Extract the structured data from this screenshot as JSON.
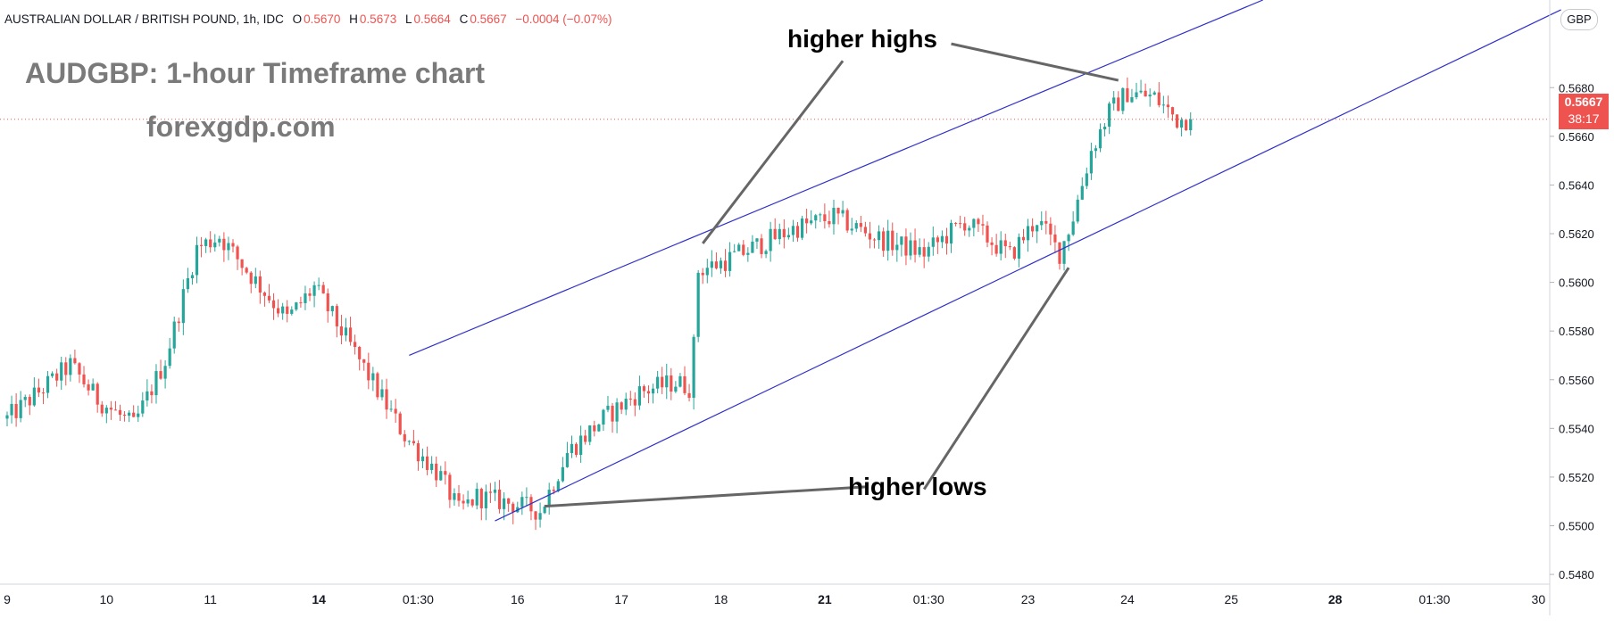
{
  "header": {
    "symbol": "AUSTRALIAN DOLLAR / BRITISH POUND, 1h, IDC",
    "open_label": "O",
    "open": "0.5670",
    "high_label": "H",
    "high": "0.5673",
    "low_label": "L",
    "low": "0.5664",
    "close_label": "C",
    "close": "0.5667",
    "change": "−0.0004 (−0.07%)"
  },
  "overlay": {
    "title": "AUDGBP: 1-hour Timeframe chart",
    "site": "forexgdp.com"
  },
  "annotations": {
    "higher_highs": "higher highs",
    "higher_lows": "higher lows"
  },
  "price_scale": {
    "currency": "GBP",
    "last_price": "0.5667",
    "countdown": "38:17"
  },
  "colors": {
    "up_candle": "#26a69a",
    "down_candle": "#ef5350",
    "trendline": "#3030c8",
    "annotation_line": "#666666",
    "price_line": "#ef5350",
    "axis_text": "#131722"
  },
  "chart_data": {
    "type": "candlestick",
    "instrument": "AUDGBP",
    "timeframe": "1h",
    "ylim": [
      0.5476,
      0.5716
    ],
    "y_ticks": [
      "0.5480",
      "0.5500",
      "0.5520",
      "0.5540",
      "0.5560",
      "0.5580",
      "0.5600",
      "0.5620",
      "0.5640",
      "0.5660",
      "0.5680"
    ],
    "x_ticks": [
      {
        "label": "9",
        "bar": 0,
        "bold": false
      },
      {
        "label": "10",
        "bar": 22,
        "bold": false
      },
      {
        "label": "11",
        "bar": 45,
        "bold": false
      },
      {
        "label": "14",
        "bar": 69,
        "bold": true
      },
      {
        "label": "01:30",
        "bar": 91,
        "bold": false
      },
      {
        "label": "16",
        "bar": 113,
        "bold": false
      },
      {
        "label": "17",
        "bar": 136,
        "bold": false
      },
      {
        "label": "18",
        "bar": 158,
        "bold": false
      },
      {
        "label": "21",
        "bar": 181,
        "bold": true
      },
      {
        "label": "01:30",
        "bar": 204,
        "bold": false
      },
      {
        "label": "23",
        "bar": 226,
        "bold": false
      },
      {
        "label": "24",
        "bar": 248,
        "bold": false
      },
      {
        "label": "25",
        "bar": 271,
        "bold": false
      },
      {
        "label": "28",
        "bar": 294,
        "bold": true
      },
      {
        "label": "01:30",
        "bar": 316,
        "bold": false
      },
      {
        "label": "30",
        "bar": 339,
        "bold": false
      }
    ],
    "bar_count_visible": 344,
    "last_price": 0.5667,
    "anchors": [
      {
        "bar": 0,
        "price": 0.5544
      },
      {
        "bar": 14,
        "price": 0.5566
      },
      {
        "bar": 20,
        "price": 0.5552
      },
      {
        "bar": 28,
        "price": 0.5541
      },
      {
        "bar": 35,
        "price": 0.5568
      },
      {
        "bar": 42,
        "price": 0.5614
      },
      {
        "bar": 47,
        "price": 0.5619
      },
      {
        "bar": 53,
        "price": 0.5605
      },
      {
        "bar": 62,
        "price": 0.5585
      },
      {
        "bar": 68,
        "price": 0.5598
      },
      {
        "bar": 76,
        "price": 0.5574
      },
      {
        "bar": 88,
        "price": 0.5537
      },
      {
        "bar": 96,
        "price": 0.552
      },
      {
        "bar": 100,
        "price": 0.5506
      },
      {
        "bar": 104,
        "price": 0.5512
      },
      {
        "bar": 112,
        "price": 0.5509
      },
      {
        "bar": 118,
        "price": 0.5506
      },
      {
        "bar": 124,
        "price": 0.553
      },
      {
        "bar": 132,
        "price": 0.5544
      },
      {
        "bar": 140,
        "price": 0.5555
      },
      {
        "bar": 148,
        "price": 0.5559
      },
      {
        "bar": 151,
        "price": 0.5557
      },
      {
        "bar": 152,
        "price": 0.5574
      },
      {
        "bar": 153,
        "price": 0.5605
      },
      {
        "bar": 158,
        "price": 0.5608
      },
      {
        "bar": 166,
        "price": 0.5615
      },
      {
        "bar": 174,
        "price": 0.5622
      },
      {
        "bar": 183,
        "price": 0.5627
      },
      {
        "bar": 193,
        "price": 0.5618
      },
      {
        "bar": 203,
        "price": 0.5612
      },
      {
        "bar": 212,
        "price": 0.5625
      },
      {
        "bar": 222,
        "price": 0.5611
      },
      {
        "bar": 228,
        "price": 0.5626
      },
      {
        "bar": 233,
        "price": 0.5612
      },
      {
        "bar": 236,
        "price": 0.5627
      },
      {
        "bar": 240,
        "price": 0.5654
      },
      {
        "bar": 244,
        "price": 0.567
      },
      {
        "bar": 248,
        "price": 0.5678
      },
      {
        "bar": 254,
        "price": 0.5676
      },
      {
        "bar": 259,
        "price": 0.5667
      },
      {
        "bar": 262,
        "price": 0.5667
      }
    ],
    "trendlines": [
      {
        "name": "upper-channel",
        "from": {
          "bar": 89,
          "price": 0.557
        },
        "to": {
          "bar": 278,
          "price": 0.5716
        }
      },
      {
        "name": "lower-channel",
        "from": {
          "bar": 108,
          "price": 0.5502
        },
        "to": {
          "bar": 344,
          "price": 0.5712
        }
      }
    ],
    "annotation_lines": [
      {
        "label": "higher_highs",
        "text_at": {
          "bar": 209,
          "price": 0.5698
        },
        "to": {
          "bar": 246,
          "price": 0.5683
        }
      },
      {
        "label": "higher_highs",
        "text_at": {
          "bar": 185,
          "price": 0.5691
        },
        "to": {
          "bar": 154,
          "price": 0.5616
        }
      },
      {
        "label": "higher_lows",
        "text_at": {
          "bar": 203,
          "price": 0.5515
        },
        "to": {
          "bar": 235,
          "price": 0.5606
        }
      },
      {
        "label": "higher_lows",
        "text_at": {
          "bar": 190,
          "price": 0.5516
        },
        "to": {
          "bar": 119,
          "price": 0.5508
        }
      }
    ]
  }
}
